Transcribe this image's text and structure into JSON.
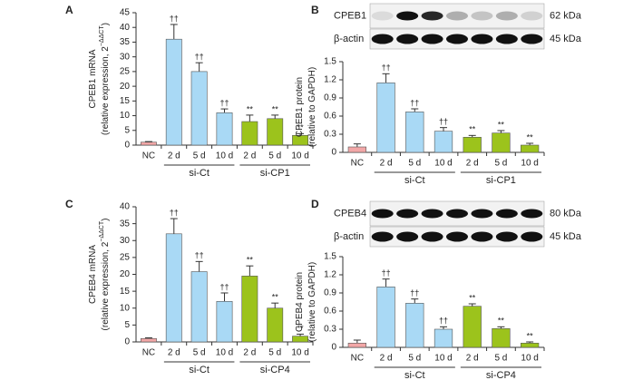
{
  "chart_data": [
    {
      "type": "bar",
      "panel": "A",
      "ylabel": "CPEB1 mRNA",
      "ylabel2": "(relative expression, 2",
      "ylabel_sup": "−ΔΔCT",
      "ylabel_end": ")",
      "categories": [
        "NC",
        "2 d",
        "5 d",
        "10 d",
        "2 d",
        "5 d",
        "10 d"
      ],
      "groups": [
        {
          "name": "si-Ct",
          "start": 1,
          "end": 3
        },
        {
          "name": "si-CP1",
          "start": 4,
          "end": 6
        }
      ],
      "values": [
        1,
        36,
        25,
        11,
        8,
        9,
        3.3
      ],
      "errors": [
        0.2,
        5,
        3,
        1.3,
        2.2,
        1.2,
        0.6
      ],
      "annotations": [
        null,
        "††",
        "††",
        "††",
        "**",
        "**",
        "**"
      ],
      "colors": [
        "#f2a7a7",
        "#a9d9f5",
        "#a9d9f5",
        "#a9d9f5",
        "#9cc31c",
        "#9cc31c",
        "#9cc31c"
      ],
      "ylim": [
        0,
        45
      ],
      "yticks": [
        0,
        5,
        10,
        15,
        20,
        25,
        30,
        35,
        40,
        45
      ]
    },
    {
      "type": "bar",
      "panel": "B",
      "ylabel": "CPEB1 protein",
      "ylabel2": "(relative to GAPDH)",
      "blot": [
        {
          "label": "CPEB1",
          "size": "62 kDa"
        },
        {
          "label": "β-actin",
          "size": "45 kDa"
        }
      ],
      "categories": [
        "NC",
        "2 d",
        "5 d",
        "10 d",
        "2 d",
        "5 d",
        "10 d"
      ],
      "groups": [
        {
          "name": "si-Ct",
          "start": 1,
          "end": 3
        },
        {
          "name": "si-CP1",
          "start": 4,
          "end": 6
        }
      ],
      "values": [
        0.09,
        1.15,
        0.67,
        0.35,
        0.25,
        0.32,
        0.12
      ],
      "errors": [
        0.05,
        0.15,
        0.05,
        0.06,
        0.03,
        0.04,
        0.03
      ],
      "annotations": [
        null,
        "††",
        "††",
        "††",
        "**",
        "**",
        "**"
      ],
      "colors": [
        "#f2a7a7",
        "#a9d9f5",
        "#a9d9f5",
        "#a9d9f5",
        "#9cc31c",
        "#9cc31c",
        "#9cc31c"
      ],
      "ylim": [
        0,
        1.5
      ],
      "yticks": [
        0,
        0.3,
        0.6,
        0.9,
        1.2,
        1.5
      ]
    },
    {
      "type": "bar",
      "panel": "C",
      "ylabel": "CPEB4 mRNA",
      "ylabel2": "(relative expression, 2",
      "ylabel_sup": "−ΔΔCT",
      "ylabel_end": ")",
      "categories": [
        "NC",
        "2 d",
        "5 d",
        "10 d",
        "2 d",
        "5 d",
        "10 d"
      ],
      "groups": [
        {
          "name": "si-Ct",
          "start": 1,
          "end": 3
        },
        {
          "name": "si-CP4",
          "start": 4,
          "end": 6
        }
      ],
      "values": [
        1,
        32,
        20.8,
        12,
        19.5,
        10,
        1.7
      ],
      "errors": [
        0.2,
        4.5,
        3,
        2.5,
        3,
        1.5,
        0.6
      ],
      "annotations": [
        null,
        "††",
        "††",
        "††",
        "**",
        "**",
        "**"
      ],
      "colors": [
        "#f2a7a7",
        "#a9d9f5",
        "#a9d9f5",
        "#a9d9f5",
        "#9cc31c",
        "#9cc31c",
        "#9cc31c"
      ],
      "ylim": [
        0,
        40
      ],
      "yticks": [
        0,
        5,
        10,
        15,
        20,
        25,
        30,
        35,
        40
      ]
    },
    {
      "type": "bar",
      "panel": "D",
      "ylabel": "CPEB4 protein",
      "ylabel2": "(relative to GAPDH)",
      "blot": [
        {
          "label": "CPEB4",
          "size": "80 kDa"
        },
        {
          "label": "β-actin",
          "size": "45 kDa"
        }
      ],
      "categories": [
        "NC",
        "2 d",
        "5 d",
        "10 d",
        "2 d",
        "5 d",
        "10 d"
      ],
      "groups": [
        {
          "name": "si-Ct",
          "start": 1,
          "end": 3
        },
        {
          "name": "si-CP4",
          "start": 4,
          "end": 6
        }
      ],
      "values": [
        0.07,
        1.0,
        0.73,
        0.3,
        0.68,
        0.31,
        0.07
      ],
      "errors": [
        0.05,
        0.13,
        0.07,
        0.04,
        0.04,
        0.03,
        0.02
      ],
      "annotations": [
        null,
        "††",
        "††",
        "††",
        "**",
        "**",
        "**"
      ],
      "colors": [
        "#f2a7a7",
        "#a9d9f5",
        "#a9d9f5",
        "#a9d9f5",
        "#9cc31c",
        "#9cc31c",
        "#9cc31c"
      ],
      "ylim": [
        0,
        1.5
      ],
      "yticks": [
        0,
        0.3,
        0.6,
        0.9,
        1.2,
        1.5
      ]
    }
  ]
}
